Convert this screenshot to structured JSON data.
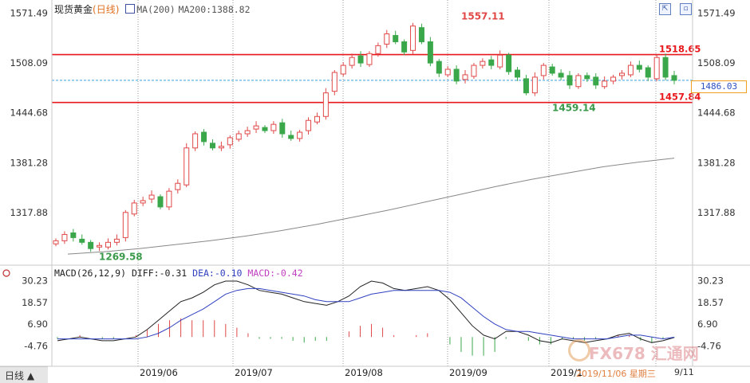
{
  "header": {
    "symbol": "现货黄金",
    "timeframe": "(日线)",
    "ma_label": "MA(200)",
    "ma_value": "MA200:1388.82"
  },
  "macd_header": {
    "label": "MACD(26,12,9)",
    "diff": "DIFF:-0.31",
    "dea": "DEA:-0.10",
    "macd": "MACD:-0.42"
  },
  "corner_label": "日线 ▲",
  "current_price_tag": "1486.03",
  "footer": {
    "date": "2019/11/06  星期三",
    "time": "9/11"
  },
  "watermark": "FX678 汇通网",
  "colors": {
    "up": "#e04848",
    "down": "#3aa84a",
    "resistance": "#e8171c",
    "ma": "#888888",
    "diff": "#222222",
    "dea": "#3040c0",
    "macd_label": "#c040c0",
    "current": "#3aa0e0"
  },
  "chart_data": [
    {
      "type": "candlestick",
      "title": "现货黄金(日线)",
      "yaxis_ticks": [
        "1571.49",
        "1508.09",
        "1444.68",
        "1381.28",
        "1317.88"
      ],
      "ylim": [
        1254,
        1580
      ],
      "xaxis_ticks": [
        "2019/06",
        "2019/07",
        "2019/08",
        "2019/09",
        "2019/1"
      ],
      "horizontal_lines": [
        {
          "value": 1518.65,
          "label": "1518.65",
          "style": "solid",
          "color": "#e8171c"
        },
        {
          "value": 1457.84,
          "label": "1457.84",
          "style": "solid",
          "color": "#e8171c"
        },
        {
          "value": 1486.03,
          "label": "1486.03",
          "style": "dashed",
          "color": "#3aa0e0"
        }
      ],
      "annotations": [
        {
          "label": "1557.11",
          "value": 1557.11
        },
        {
          "label": "1459.14",
          "value": 1459.14
        },
        {
          "label": "1269.58",
          "value": 1269.58
        }
      ],
      "ma200": [
        1265,
        1268,
        1272,
        1277,
        1282,
        1288,
        1295,
        1303,
        1312,
        1321,
        1331,
        1341,
        1351,
        1360,
        1368,
        1376,
        1382,
        1387
      ],
      "candles_close": [
        1282,
        1290,
        1286,
        1280,
        1272,
        1276,
        1280,
        1284,
        1318,
        1330,
        1333,
        1340,
        1325,
        1345,
        1355,
        1400,
        1418,
        1408,
        1400,
        1402,
        1413,
        1418,
        1422,
        1428,
        1422,
        1430,
        1418,
        1412,
        1420,
        1435,
        1440,
        1470,
        1496,
        1505,
        1515,
        1508,
        1520,
        1530,
        1545,
        1535,
        1522,
        1555,
        1535,
        1508,
        1495,
        1500,
        1485,
        1493,
        1505,
        1510,
        1505,
        1518,
        1497,
        1490,
        1470,
        1490,
        1505,
        1495,
        1490,
        1480,
        1492,
        1488,
        1480,
        1485,
        1490,
        1495,
        1505,
        1500,
        1490,
        1515,
        1490,
        1486
      ]
    },
    {
      "type": "macd",
      "title": "MACD(26,12,9)",
      "yaxis_ticks": [
        "30.23",
        "18.57",
        "6.90",
        "-4.76"
      ],
      "ylim": [
        -14,
        33
      ],
      "diff": [
        -2,
        -1,
        0,
        -1,
        -2,
        -2,
        -1,
        0,
        4,
        9,
        14,
        19,
        21,
        24,
        28,
        30,
        30,
        28,
        25,
        24,
        23,
        21,
        19,
        18,
        17,
        19,
        22,
        27,
        30,
        29,
        26,
        25,
        26,
        27,
        25,
        20,
        13,
        6,
        1,
        -1,
        3,
        3,
        1,
        -2,
        -3,
        -1,
        -2,
        -3,
        -2,
        -1,
        1,
        2,
        -1,
        -3,
        -2,
        -0.3
      ],
      "dea": [
        -1,
        -1,
        -1,
        -1,
        -1,
        -1,
        -1,
        -1,
        0,
        2,
        5,
        9,
        12,
        15,
        19,
        23,
        25,
        26,
        26,
        25,
        24,
        23,
        22,
        20,
        19,
        19,
        19,
        21,
        23,
        24,
        25,
        25,
        25,
        25,
        25,
        24,
        21,
        16,
        11,
        7,
        4,
        3,
        3,
        2,
        1,
        0,
        -1,
        -1,
        -1,
        -1,
        0,
        1,
        1,
        0,
        -1,
        -0.1
      ],
      "histogram": [
        -1.0,
        0.0,
        1.0,
        0.0,
        -1.0,
        -1.0,
        0.0,
        1.0,
        4.0,
        7.0,
        9.0,
        10.0,
        9.0,
        9.0,
        9.0,
        7.0,
        5.0,
        2.0,
        -1.0,
        -1.0,
        -1.0,
        -2.0,
        -3.0,
        -2.0,
        -2.0,
        0.0,
        3.0,
        6.0,
        7.0,
        5.0,
        1.0,
        0.0,
        1.0,
        2.0,
        0.0,
        -4.0,
        -8.0,
        -10.0,
        -10.0,
        -8.0,
        -1.0,
        0.0,
        -2.0,
        -4.0,
        -4.0,
        -1.0,
        -1.0,
        -2.0,
        -1.0,
        0.0,
        1.0,
        1.0,
        -2.0,
        -3.0,
        -1.0,
        -0.42
      ]
    }
  ]
}
